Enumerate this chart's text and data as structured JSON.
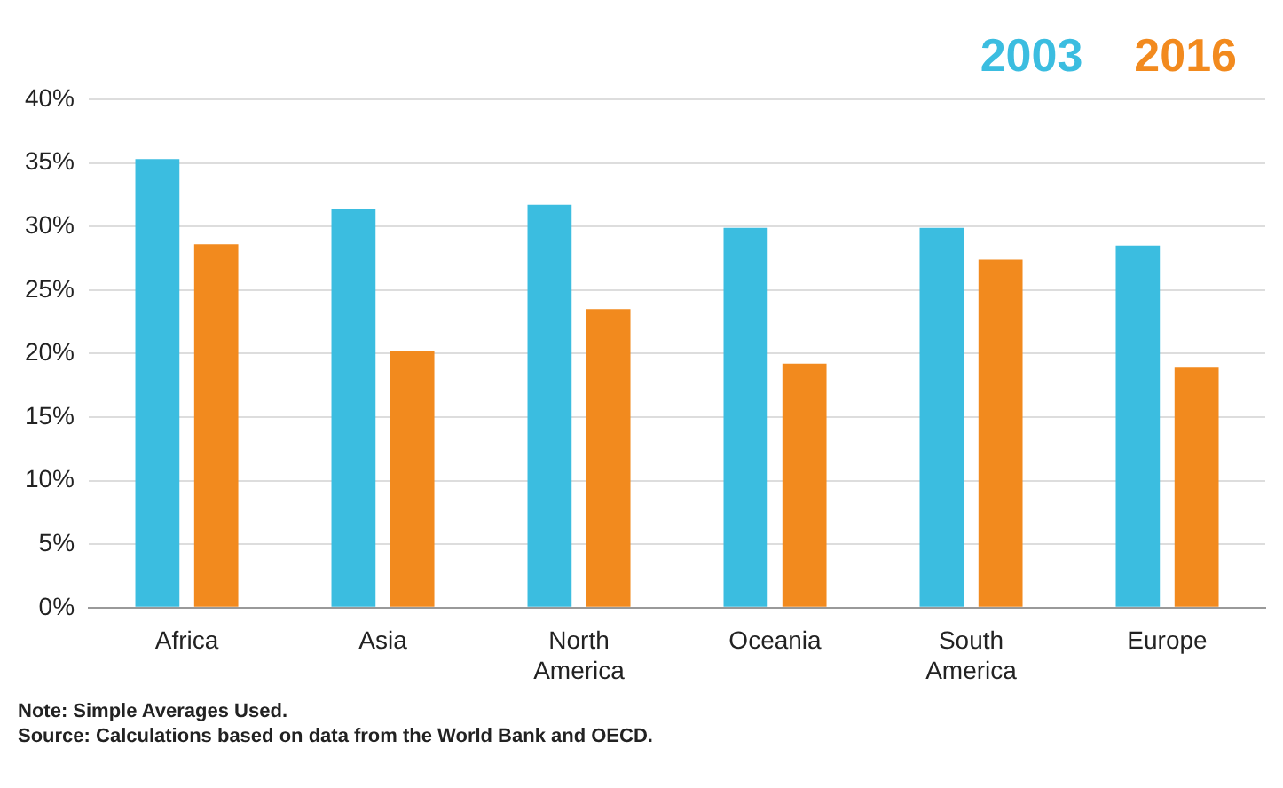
{
  "chart_data": {
    "type": "bar",
    "categories": [
      "Africa",
      "Asia",
      "North America",
      "Oceania",
      "South America",
      "Europe"
    ],
    "series": [
      {
        "name": "2003",
        "color": "#3bbde0",
        "values": [
          35.3,
          31.4,
          31.7,
          29.9,
          29.9,
          28.5
        ]
      },
      {
        "name": "2016",
        "color": "#f28a1e",
        "values": [
          28.6,
          20.2,
          23.5,
          19.2,
          27.4,
          18.9
        ]
      }
    ],
    "ylim": [
      0,
      40
    ],
    "yticks": [
      {
        "value": 0,
        "label": "0%"
      },
      {
        "value": 5,
        "label": "5%"
      },
      {
        "value": 10,
        "label": "10%"
      },
      {
        "value": 15,
        "label": "15%"
      },
      {
        "value": 20,
        "label": "20%"
      },
      {
        "value": 25,
        "label": "25%"
      },
      {
        "value": 30,
        "label": "30%"
      },
      {
        "value": 35,
        "label": "35%"
      },
      {
        "value": 40,
        "label": "40%"
      }
    ],
    "grid": "y",
    "legend": "top right",
    "annotations": [
      "Note: Simple Averages Used.",
      "Source: Calculations based on data from the World Bank and OECD."
    ]
  }
}
